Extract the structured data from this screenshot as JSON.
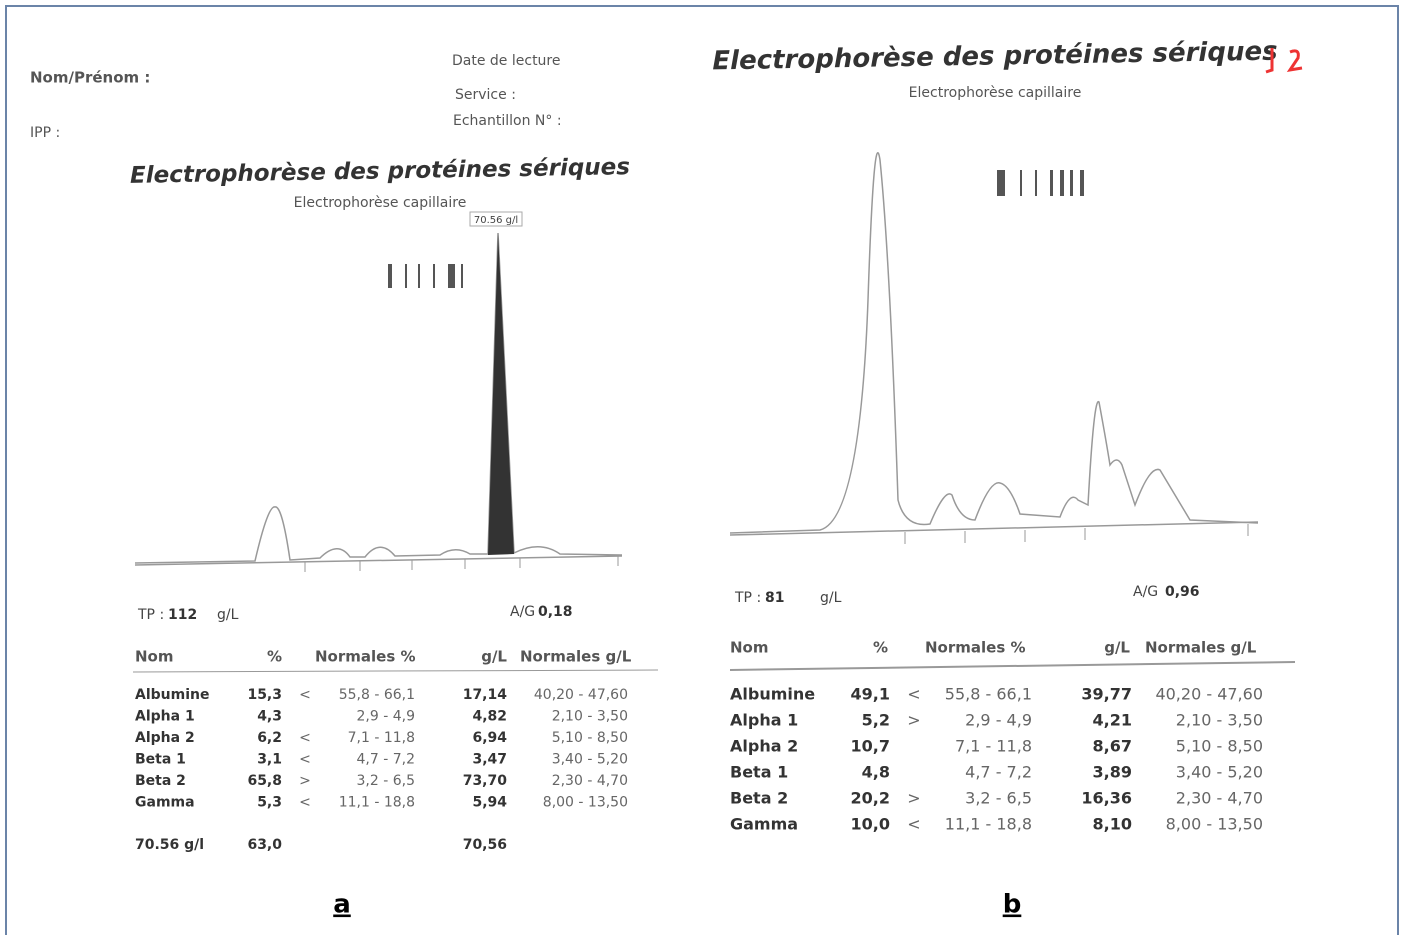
{
  "panel_a": {
    "header": {
      "name_label": "Nom/Prénom :",
      "ipp_label": "IPP :",
      "date_label": "Date de lecture",
      "service_label": "Service :",
      "sample_label": "Echantillon N° :"
    },
    "title": "Electrophorèse des protéines sériques",
    "subtitle": "Electrophorèse capillaire",
    "peak_label": "70.56 g/l",
    "tp_label": "TP :",
    "tp_value": "112",
    "tp_unit": "g/L",
    "ag_label": "A/G",
    "ag_value": "0,18",
    "table": {
      "columns": {
        "name": "Nom",
        "pct": "%",
        "normal_pct": "Normales %",
        "gl": "g/L",
        "normal_gl": "Normales g/L"
      },
      "rows": [
        {
          "name": "Albumine",
          "pct": "15,3",
          "flag": "<",
          "normal_pct": "55,8 - 66,1",
          "gl": "17,14",
          "normal_gl": "40,20 - 47,60"
        },
        {
          "name": "Alpha 1",
          "pct": "4,3",
          "normal_pct": "2,9 - 4,9",
          "gl": "4,82",
          "normal_gl": "2,10 - 3,50"
        },
        {
          "name": "Alpha 2",
          "pct": "6,2",
          "flag": "<",
          "normal_pct": "7,1 - 11,8",
          "gl": "6,94",
          "normal_gl": "5,10 - 8,50"
        },
        {
          "name": "Beta 1",
          "pct": "3,1",
          "flag": "<",
          "normal_pct": "4,7 - 7,2",
          "gl": "3,47",
          "normal_gl": "3,40 - 5,20"
        },
        {
          "name": "Beta 2",
          "pct": "65,8",
          "flag": ">",
          "normal_pct": "3,2 - 6,5",
          "gl": "73,70",
          "normal_gl": "2,30 - 4,70"
        },
        {
          "name": "Gamma",
          "pct": "5,3",
          "flag": "<",
          "normal_pct": "11,1 - 18,8",
          "gl": "5,94",
          "normal_gl": "8,00 - 13,50"
        }
      ],
      "footer": {
        "name": "70.56 g/l",
        "pct": "63,0",
        "gl": "70,56"
      }
    },
    "caption": "a"
  },
  "panel_b": {
    "title": "Electrophorèse des protéines sériques",
    "subtitle": "Electrophorèse capillaire",
    "tp_label": "TP :",
    "tp_value": "81",
    "tp_unit": "g/L",
    "ag_label": "A/G",
    "ag_value": "0,96",
    "table": {
      "columns": {
        "name": "Nom",
        "pct": "%",
        "normal_pct": "Normales %",
        "gl": "g/L",
        "normal_gl": "Normales g/L"
      },
      "rows": [
        {
          "name": "Albumine",
          "pct": "49,1",
          "flag": "<",
          "normal_pct": "55,8 - 66,1",
          "gl": "39,77",
          "normal_gl": "40,20 - 47,60"
        },
        {
          "name": "Alpha 1",
          "pct": "5,2",
          "flag": ">",
          "normal_pct": "2,9 - 4,9",
          "gl": "4,21",
          "normal_gl": "2,10 - 3,50"
        },
        {
          "name": "Alpha 2",
          "pct": "10,7",
          "normal_pct": "7,1 - 11,8",
          "gl": "8,67",
          "normal_gl": "5,10 - 8,50"
        },
        {
          "name": "Beta 1",
          "pct": "4,8",
          "normal_pct": "4,7 - 7,2",
          "gl": "3,89",
          "normal_gl": "3,40 - 5,20"
        },
        {
          "name": "Beta 2",
          "pct": "20,2",
          "flag": ">",
          "normal_pct": "3,2 - 6,5",
          "gl": "16,36",
          "normal_gl": "2,30 - 4,70"
        },
        {
          "name": "Gamma",
          "pct": "10,0",
          "flag": "<",
          "normal_pct": "11,1 - 18,8",
          "gl": "8,10",
          "normal_gl": "8,00 - 13,50"
        }
      ]
    },
    "caption": "b"
  }
}
